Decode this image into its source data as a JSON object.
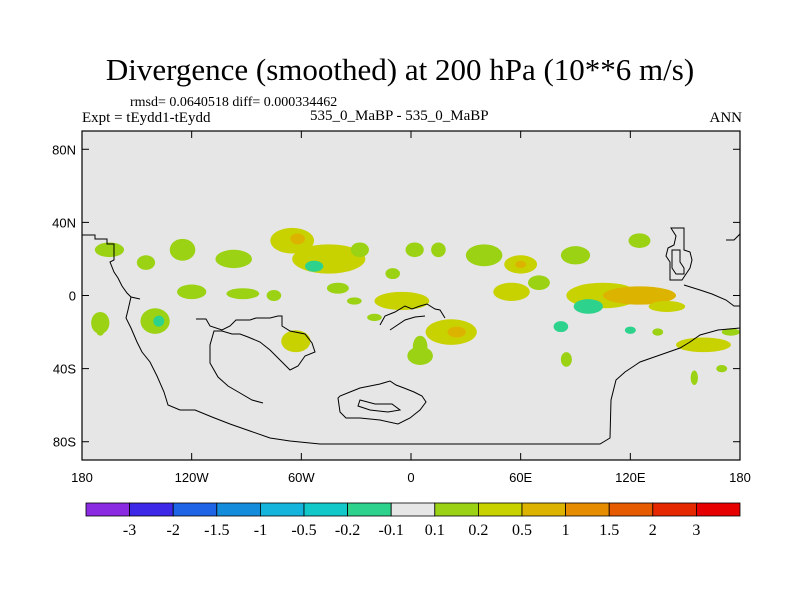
{
  "header": {
    "title": "Divergence (smoothed) at 200 hPa (10**6 m/s)",
    "stats_text": "rmsd= 0.0640518 diff= 0.000334462",
    "expt_text": "Expt = tEydd1-tEydd",
    "case_text": "535_0_MaBP - 535_0_MaBP",
    "season": "ANN"
  },
  "chart_data": {
    "type": "heatmap",
    "variable": "Divergence (smoothed)",
    "level": "200 hPa",
    "units": "10**6 m/s",
    "xlim": [
      -180,
      180
    ],
    "ylim": [
      -90,
      90
    ],
    "x_ticks": [
      -180,
      -120,
      -60,
      0,
      60,
      120,
      180
    ],
    "x_tick_labels": [
      "180",
      "120W",
      "60W",
      "0",
      "60E",
      "120E",
      "180"
    ],
    "y_ticks": [
      80,
      40,
      0,
      -40,
      -80
    ],
    "y_tick_labels": [
      "80N",
      "40N",
      "0",
      "40S",
      "80S"
    ],
    "colorbar": {
      "levels": [
        "-3",
        "-2",
        "-1.5",
        "-1",
        "-0.5",
        "-0.2",
        "-0.1",
        "0.1",
        "0.2",
        "0.5",
        "1",
        "1.5",
        "2",
        "3"
      ],
      "colors": [
        "#8a2be2",
        "#3c28e6",
        "#1e64e6",
        "#148cdc",
        "#14b4dc",
        "#12c8c8",
        "#2dd28c",
        "#e6e6e6",
        "#9bd214",
        "#c8d200",
        "#dcb400",
        "#e68c00",
        "#e65a00",
        "#e62800",
        "#e60000"
      ]
    },
    "background_color": "#e6e6e6",
    "anomaly_cells": [
      {
        "lon": -165,
        "lat": 25,
        "rlon": 8,
        "rlat": 4,
        "value": 0.15
      },
      {
        "lon": -145,
        "lat": 18,
        "rlon": 5,
        "rlat": 4,
        "value": 0.15
      },
      {
        "lon": -125,
        "lat": 25,
        "rlon": 7,
        "rlat": 6,
        "value": 0.15
      },
      {
        "lon": -97,
        "lat": 20,
        "rlon": 10,
        "rlat": 5,
        "value": 0.15
      },
      {
        "lon": -65,
        "lat": 30,
        "rlon": 12,
        "rlat": 7,
        "value": 0.3
      },
      {
        "lon": -62,
        "lat": 31,
        "rlon": 4,
        "rlat": 3,
        "value": 0.6
      },
      {
        "lon": -45,
        "lat": 20,
        "rlon": 20,
        "rlat": 8,
        "value": 0.2
      },
      {
        "lon": -53,
        "lat": 16,
        "rlon": 5,
        "rlat": 3,
        "value": -0.15
      },
      {
        "lon": -28,
        "lat": 25,
        "rlon": 5,
        "rlat": 4,
        "value": 0.15
      },
      {
        "lon": -10,
        "lat": 12,
        "rlon": 4,
        "rlat": 3,
        "value": 0.15
      },
      {
        "lon": 2,
        "lat": 25,
        "rlon": 5,
        "rlat": 4,
        "value": 0.15
      },
      {
        "lon": 15,
        "lat": 25,
        "rlon": 4,
        "rlat": 4,
        "value": 0.15
      },
      {
        "lon": 40,
        "lat": 22,
        "rlon": 10,
        "rlat": 6,
        "value": 0.15
      },
      {
        "lon": 60,
        "lat": 17,
        "rlon": 9,
        "rlat": 5,
        "value": 0.3
      },
      {
        "lon": 60,
        "lat": 17,
        "rlon": 3,
        "rlat": 2,
        "value": 0.6
      },
      {
        "lon": 90,
        "lat": 22,
        "rlon": 8,
        "rlat": 5,
        "value": 0.15
      },
      {
        "lon": 125,
        "lat": 30,
        "rlon": 6,
        "rlat": 4,
        "value": 0.15
      },
      {
        "lon": -170,
        "lat": -15,
        "rlon": 5,
        "rlat": 6,
        "value": 0.15
      },
      {
        "lon": -140,
        "lat": -14,
        "rlon": 8,
        "rlat": 7,
        "value": 0.15
      },
      {
        "lon": -138,
        "lat": -14,
        "rlon": 3,
        "rlat": 3,
        "value": -0.15
      },
      {
        "lon": -120,
        "lat": 2,
        "rlon": 8,
        "rlat": 4,
        "value": 0.15
      },
      {
        "lon": -92,
        "lat": 1,
        "rlon": 9,
        "rlat": 3,
        "value": 0.15
      },
      {
        "lon": -75,
        "lat": 0,
        "rlon": 4,
        "rlat": 3,
        "value": 0.15
      },
      {
        "lon": -40,
        "lat": 4,
        "rlon": 6,
        "rlat": 3,
        "value": 0.15
      },
      {
        "lon": -31,
        "lat": -3,
        "rlon": 4,
        "rlat": 2,
        "value": 0.15
      },
      {
        "lon": -5,
        "lat": -3,
        "rlon": 15,
        "rlat": 5,
        "value": 0.2
      },
      {
        "lon": -20,
        "lat": -12,
        "rlon": 4,
        "rlat": 2,
        "value": 0.15
      },
      {
        "lon": 22,
        "lat": -20,
        "rlon": 14,
        "rlat": 7,
        "value": 0.3
      },
      {
        "lon": 25,
        "lat": -20,
        "rlon": 5,
        "rlat": 3,
        "value": 0.6
      },
      {
        "lon": 5,
        "lat": -28,
        "rlon": 4,
        "rlat": 6,
        "value": 0.15
      },
      {
        "lon": 5,
        "lat": -33,
        "rlon": 7,
        "rlat": 5,
        "value": 0.15
      },
      {
        "lon": 55,
        "lat": 2,
        "rlon": 10,
        "rlat": 5,
        "value": 0.2
      },
      {
        "lon": 70,
        "lat": 7,
        "rlon": 6,
        "rlat": 4,
        "value": 0.15
      },
      {
        "lon": 105,
        "lat": 0,
        "rlon": 20,
        "rlat": 7,
        "value": 0.3
      },
      {
        "lon": 125,
        "lat": 0,
        "rlon": 20,
        "rlat": 5,
        "value": 0.6
      },
      {
        "lon": 140,
        "lat": -6,
        "rlon": 10,
        "rlat": 3,
        "value": 0.2
      },
      {
        "lon": 97,
        "lat": -6,
        "rlon": 8,
        "rlat": 4,
        "value": -0.15
      },
      {
        "lon": 82,
        "lat": -17,
        "rlon": 4,
        "rlat": 3,
        "value": -0.15
      },
      {
        "lon": 120,
        "lat": -19,
        "rlon": 3,
        "rlat": 2,
        "value": -0.15
      },
      {
        "lon": 135,
        "lat": -20,
        "rlon": 3,
        "rlat": 2,
        "value": 0.15
      },
      {
        "lon": 160,
        "lat": -27,
        "rlon": 15,
        "rlat": 4,
        "value": 0.3
      },
      {
        "lon": 175,
        "lat": -20,
        "rlon": 5,
        "rlat": 2,
        "value": 0.15
      },
      {
        "lon": -170,
        "lat": -20,
        "rlon": 2,
        "rlat": 2,
        "value": 0.15
      },
      {
        "lon": 85,
        "lat": -35,
        "rlon": 3,
        "rlat": 4,
        "value": 0.15
      },
      {
        "lon": 155,
        "lat": -45,
        "rlon": 2,
        "rlat": 4,
        "value": 0.15
      },
      {
        "lon": 170,
        "lat": -40,
        "rlon": 3,
        "rlat": 2,
        "value": 0.15
      },
      {
        "lon": -63,
        "lat": -25,
        "rlon": 8,
        "rlat": 6,
        "value": 0.3
      }
    ]
  }
}
